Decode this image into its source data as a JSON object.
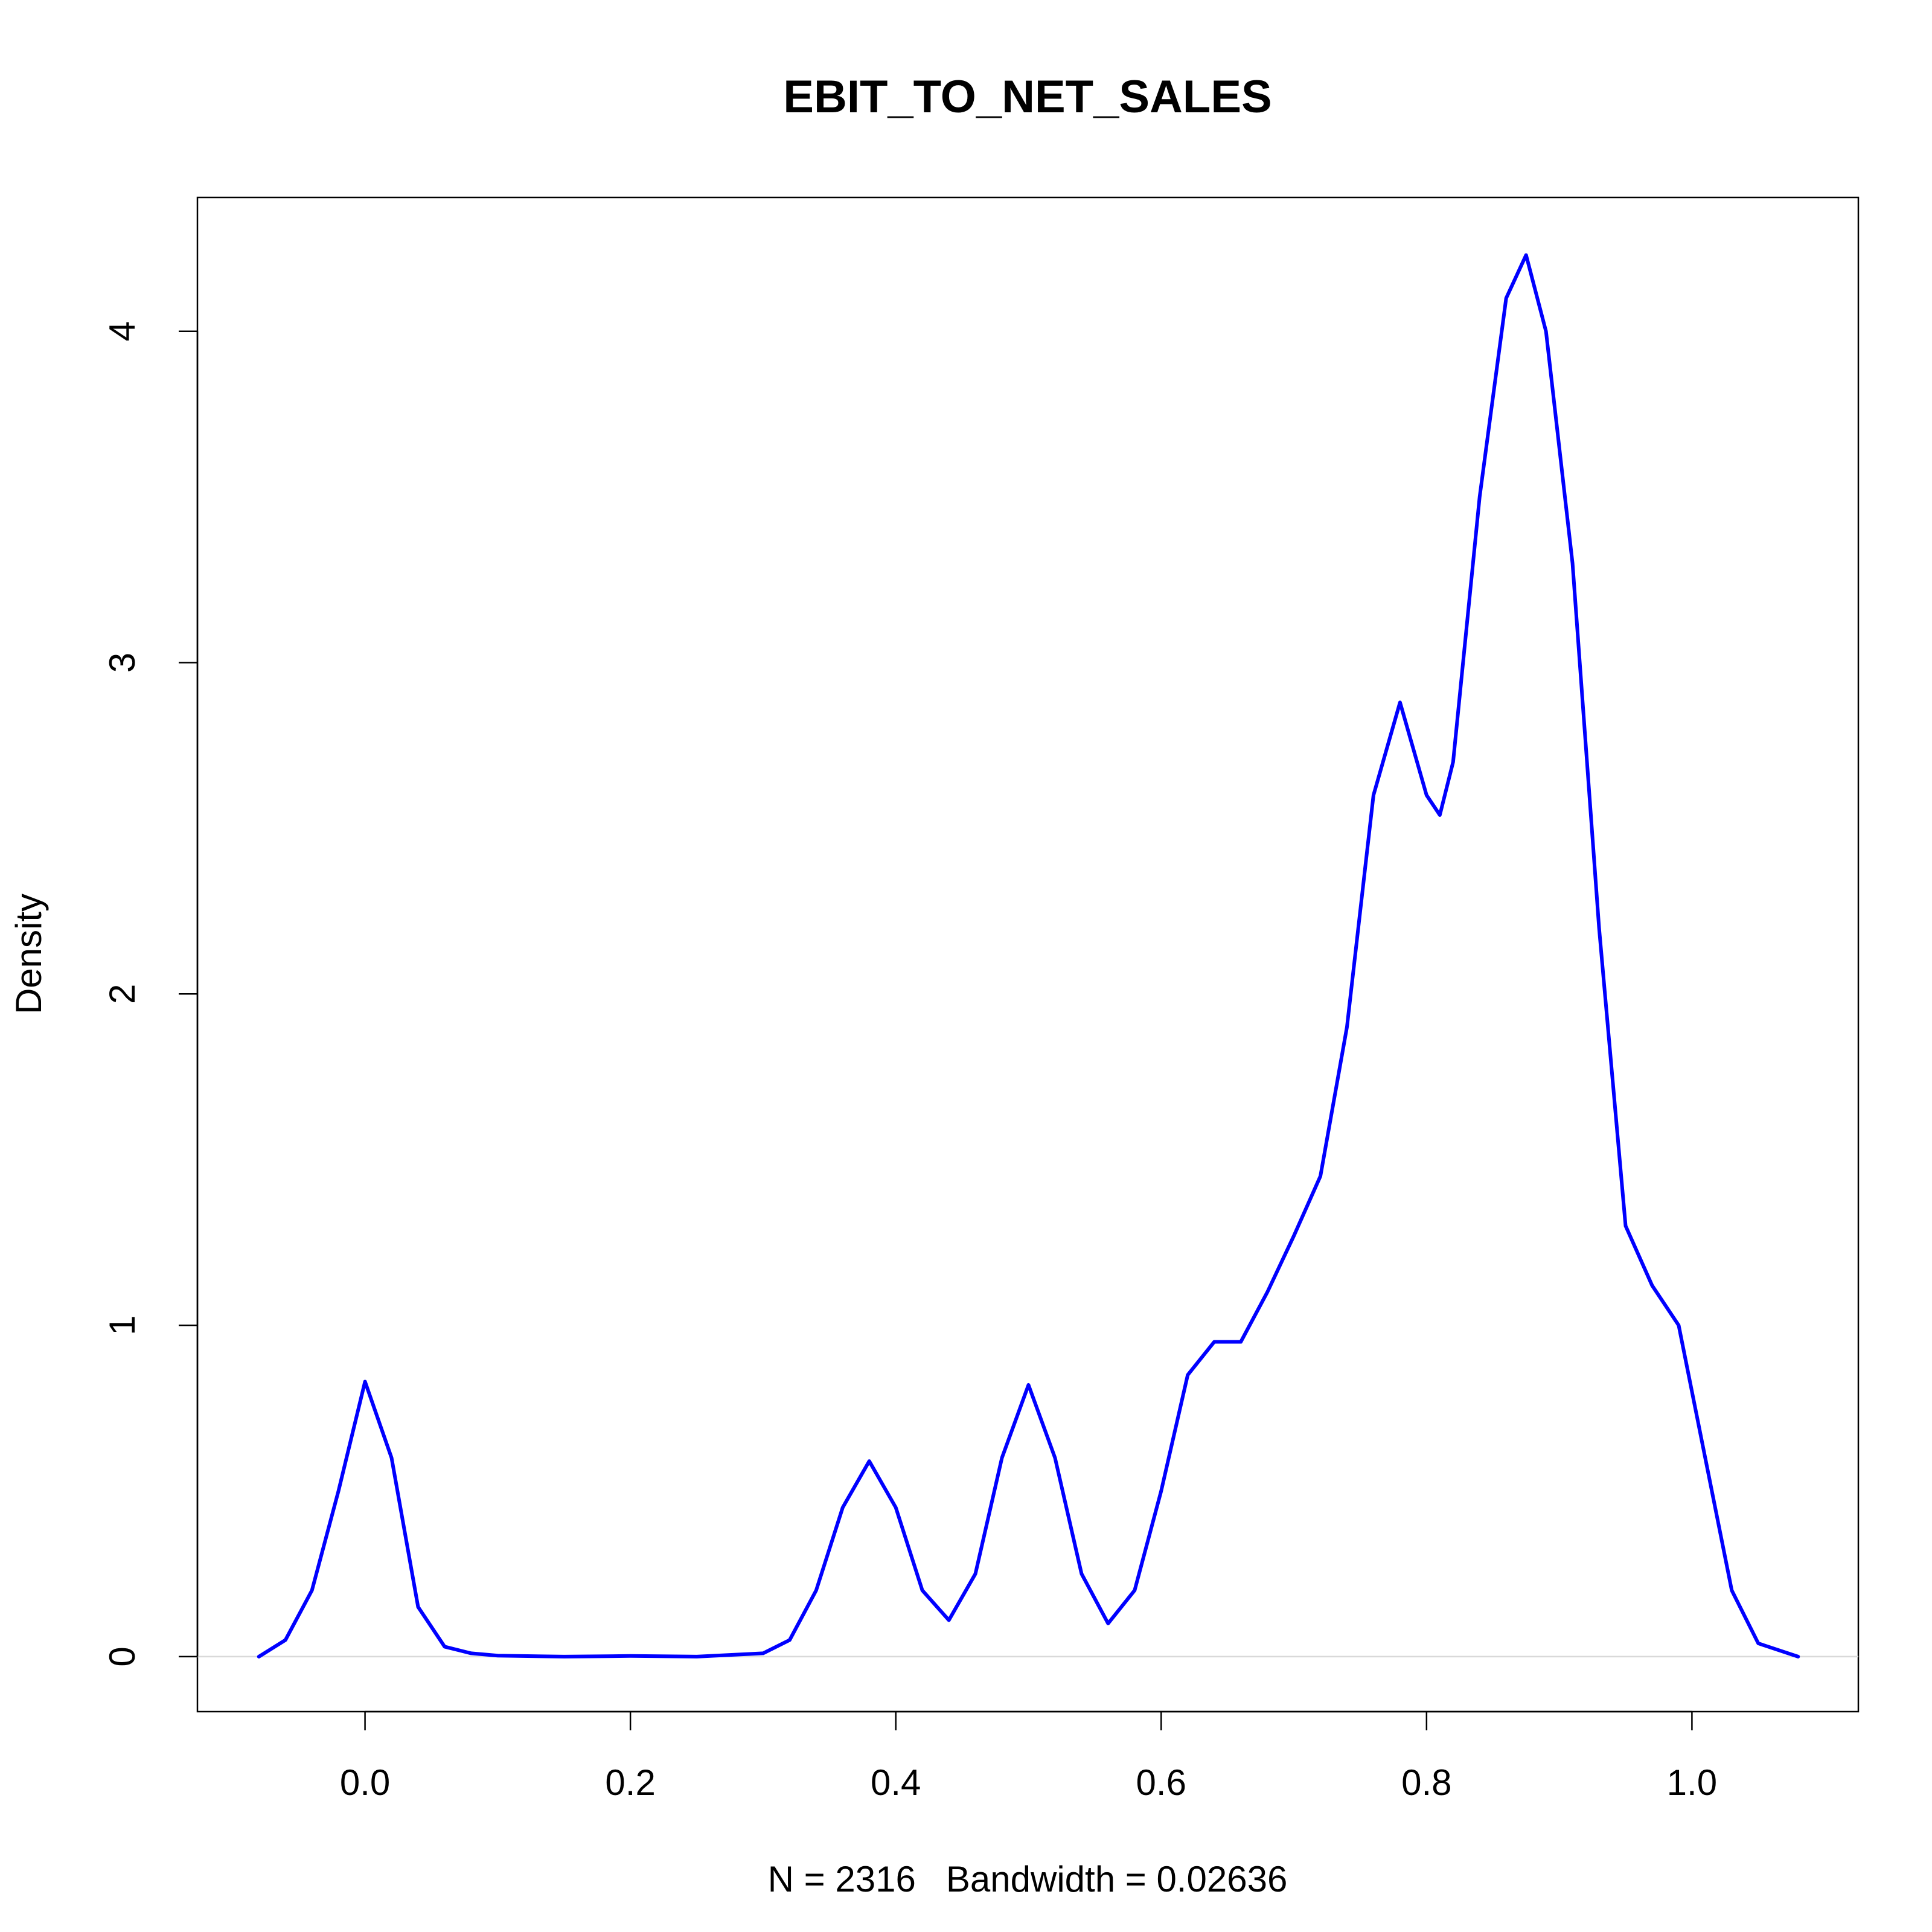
{
  "chart_data": {
    "type": "line",
    "title": "EBIT_TO_NET_SALES",
    "x_label": "N = 2316   Bandwidth = 0.02636",
    "y_label": "Density",
    "series": [
      {
        "name": "density",
        "color": "#0000ff",
        "x": [
          -0.08,
          -0.06,
          -0.04,
          -0.02,
          0.0,
          0.02,
          0.04,
          0.06,
          0.08,
          0.1,
          0.15,
          0.2,
          0.25,
          0.3,
          0.32,
          0.34,
          0.36,
          0.38,
          0.4,
          0.42,
          0.44,
          0.46,
          0.48,
          0.5,
          0.52,
          0.54,
          0.56,
          0.58,
          0.6,
          0.62,
          0.64,
          0.66,
          0.68,
          0.7,
          0.72,
          0.74,
          0.76,
          0.78,
          0.8,
          0.81,
          0.82,
          0.84,
          0.86,
          0.875,
          0.89,
          0.91,
          0.93,
          0.95,
          0.97,
          0.99,
          1.01,
          1.03,
          1.05,
          1.08
        ],
        "values": [
          0.0,
          0.05,
          0.2,
          0.5,
          0.83,
          0.6,
          0.15,
          0.03,
          0.01,
          0.003,
          0.0,
          0.002,
          0.0,
          0.01,
          0.05,
          0.2,
          0.45,
          0.59,
          0.45,
          0.2,
          0.11,
          0.25,
          0.6,
          0.82,
          0.6,
          0.25,
          0.1,
          0.2,
          0.5,
          0.85,
          0.95,
          0.95,
          1.1,
          1.27,
          1.45,
          1.9,
          2.6,
          2.88,
          2.6,
          2.54,
          2.7,
          3.5,
          4.1,
          4.23,
          4.0,
          3.3,
          2.2,
          1.3,
          1.12,
          1.0,
          0.6,
          0.2,
          0.04,
          0.0
        ]
      }
    ],
    "xlim": [
      -0.1263,
      1.1254
    ],
    "ylim": [
      -0.166,
      4.404
    ],
    "xticks": [
      {
        "value": 0,
        "label": "0.0"
      },
      0.2,
      0.4,
      0.6,
      0.8,
      {
        "value": 1,
        "label": "1.0"
      }
    ],
    "yticks": [
      0,
      1,
      2,
      3,
      4
    ]
  }
}
